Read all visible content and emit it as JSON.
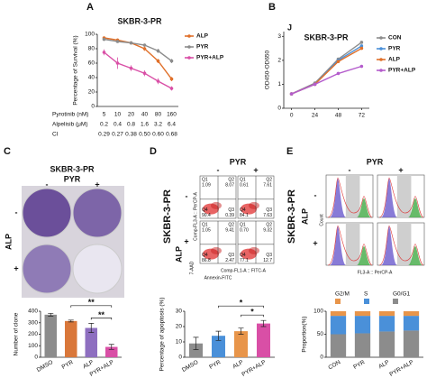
{
  "chart_data": [
    {
      "panel": "A",
      "type": "line",
      "title": "SKBR-3-PR",
      "ylabel": "Percentage of Survival (%)",
      "xlabel": "Pyrotinib (nM)",
      "categories": [
        "5",
        "10",
        "20",
        "40",
        "80",
        "160"
      ],
      "extra_rows": [
        {
          "label": "Alpelisib (μM)",
          "values": [
            "0.2",
            "0.4",
            "0.8",
            "1.6",
            "3.2",
            "6.4"
          ]
        },
        {
          "label": "CI",
          "values": [
            "0.29",
            "0.27",
            "0.38",
            "0.50",
            "0.60",
            "0.68"
          ]
        }
      ],
      "ylim": [
        0,
        100
      ],
      "yticks": [
        0,
        20,
        40,
        60,
        80,
        100
      ],
      "series": [
        {
          "name": "ALP",
          "color": "#e0702a",
          "values": [
            95,
            92,
            88,
            80,
            63,
            38
          ],
          "errors": [
            2,
            2,
            2,
            3,
            3,
            3
          ]
        },
        {
          "name": "PYR",
          "color": "#8c8c8c",
          "values": [
            93,
            90,
            88,
            85,
            77,
            63
          ],
          "errors": [
            2,
            2,
            2,
            2,
            3,
            3
          ]
        },
        {
          "name": "PYR+ALP",
          "color": "#d94fa6",
          "values": [
            75,
            60,
            53,
            46,
            35,
            25
          ],
          "errors": [
            4,
            8,
            4,
            4,
            4,
            3
          ]
        }
      ]
    },
    {
      "panel": "B",
      "type": "line",
      "annotation": "J",
      "title": "SKBR-3-PR",
      "ylabel": "OD450-OD650",
      "x": [
        0,
        24,
        48,
        72
      ],
      "xlim": [
        -8,
        80
      ],
      "xticks": [
        0,
        24,
        48,
        72
      ],
      "ylim": [
        0,
        3.2
      ],
      "yticks": [
        0,
        1,
        2,
        3
      ],
      "series": [
        {
          "name": "CON",
          "color": "#8c8c8c",
          "values": [
            0.6,
            1.05,
            2.05,
            2.75
          ]
        },
        {
          "name": "PYR",
          "color": "#4a90d9",
          "values": [
            0.6,
            1.0,
            2.0,
            2.6
          ]
        },
        {
          "name": "ALP",
          "color": "#e0702a",
          "values": [
            0.6,
            1.0,
            1.95,
            2.5
          ]
        },
        {
          "name": "PYR+ALP",
          "color": "#b45ccc",
          "values": [
            0.6,
            1.0,
            1.45,
            1.75
          ]
        }
      ]
    },
    {
      "panel": "C",
      "type": "bar",
      "image_title": "SKBR-3-PR",
      "group_label": "PYR",
      "col_labels": [
        "-",
        "+"
      ],
      "row_label": "ALP",
      "row_labels": [
        "-",
        "+"
      ],
      "ylabel": "Number of clone",
      "categories": [
        "DMSO",
        "PYR",
        "ALP",
        "PYR+ALP"
      ],
      "values": [
        370,
        315,
        255,
        90
      ],
      "errors": [
        12,
        8,
        40,
        22
      ],
      "colors": [
        "#8c8c8c",
        "#d9773a",
        "#8e6fc0",
        "#d94fa6"
      ],
      "ylim": [
        0,
        400
      ],
      "yticks": [
        0,
        100,
        200,
        300,
        400
      ],
      "significance": [
        "**",
        "**"
      ]
    },
    {
      "panel": "D",
      "type": "bar",
      "side_title": "SKBR-3-PR",
      "group_label": "PYR",
      "col_labels": [
        "-",
        "+"
      ],
      "row_label": "ALP",
      "row_labels": [
        "-",
        "+"
      ],
      "flow_ylabel": "Comp-FL3-A :: PerCP-A",
      "flow_ylabel2": "7-AAD",
      "flow_xlabel": "Comp-FL1-A :: FITC-A",
      "flow_xlabel2": "Annexin-FITC",
      "quadrant_plots": [
        [
          [
            "Q1",
            "1.09"
          ],
          [
            "Q2",
            "8.07"
          ],
          [
            "Q4",
            "90.4"
          ],
          [
            "Q3",
            "0.39"
          ]
        ],
        [
          [
            "Q1",
            "0.61"
          ],
          [
            "Q2",
            "7.61"
          ],
          [
            "Q4",
            "84.1"
          ],
          [
            "Q3",
            "7.63"
          ]
        ],
        [
          [
            "Q1",
            "1.05"
          ],
          [
            "Q2",
            "9.41"
          ],
          [
            "Q4",
            "86.8"
          ],
          [
            "Q3",
            "2.47"
          ]
        ],
        [
          [
            "Q1",
            "0.70"
          ],
          [
            "Q2",
            "9.32"
          ],
          [
            "Q4",
            "77.1"
          ],
          [
            "Q3",
            "12.7"
          ]
        ]
      ],
      "ylabel": "Percentage of apoptosis (%)",
      "categories": [
        "DMSO",
        "PYR",
        "ALP",
        "PYR+ALP"
      ],
      "values": [
        9,
        14,
        17,
        22
      ],
      "errors": [
        4,
        3,
        2,
        2
      ],
      "colors": [
        "#8c8c8c",
        "#4a90d9",
        "#e8954a",
        "#d94fa6"
      ],
      "ylim": [
        0,
        30
      ],
      "yticks": [
        0,
        10,
        20,
        30
      ],
      "significance": [
        "*",
        "*"
      ]
    },
    {
      "panel": "E",
      "type": "stacked_bar",
      "side_title": "SKBR-3-PR",
      "group_label": "PYR",
      "col_labels": [
        "-",
        "+"
      ],
      "row_label": "ALP",
      "row_labels": [
        "-",
        "+"
      ],
      "hist_ylabel": "Count",
      "hist_xlabel": "FL3-A :: PerCP-A",
      "ylabel": "Proportion(%)",
      "categories": [
        "CON",
        "PYR",
        "ALP",
        "PYR+ALP"
      ],
      "ylim": [
        0,
        100
      ],
      "yticks": [
        0,
        50,
        100
      ],
      "series": [
        {
          "name": "G2/M",
          "color": "#e8954a",
          "values": [
            10,
            10,
            10,
            10
          ]
        },
        {
          "name": "S",
          "color": "#4a90d9",
          "values": [
            40,
            38,
            34,
            32
          ]
        },
        {
          "name": "G0/G1",
          "color": "#8c8c8c",
          "values": [
            50,
            52,
            56,
            58
          ]
        }
      ]
    }
  ]
}
